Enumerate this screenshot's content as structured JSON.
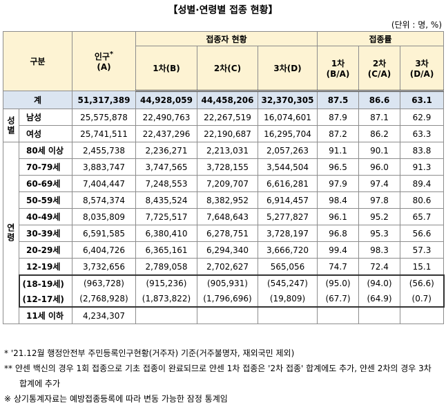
{
  "title": "【성별·연령별 접종 현황】",
  "unit": "(단위 : 명, %)",
  "table": {
    "header": {
      "group": "구분",
      "population": "인구",
      "population_mark": "*",
      "population_sub": "(A)",
      "vaccinated": "접종자 현황",
      "rate": "접종률",
      "vaccinated_columns": [
        "1차(B)",
        "2차(C)",
        "3차(D)"
      ],
      "rate_columns": [
        {
          "name": "1차",
          "sub": "(B/A)"
        },
        {
          "name": "2차",
          "sub": "(C/A)"
        },
        {
          "name": "3차",
          "sub": "(D/A)"
        }
      ]
    },
    "groups": {
      "sex": "성별",
      "age": "연령"
    },
    "rows": [
      [
        "계",
        "51,317,389",
        "44,928,059",
        "44,458,206",
        "32,370,305",
        "87.5",
        "86.6",
        "63.1"
      ],
      [
        "남성",
        "25,575,878",
        "22,490,763",
        "22,267,519",
        "16,074,601",
        "87.9",
        "87.1",
        "62.9"
      ],
      [
        "여성",
        "25,741,511",
        "22,437,296",
        "22,190,687",
        "16,295,704",
        "87.2",
        "86.2",
        "63.3"
      ],
      [
        "80세 이상",
        "2,455,738",
        "2,236,271",
        "2,213,031",
        "2,057,263",
        "91.1",
        "90.1",
        "83.8"
      ],
      [
        "70-79세",
        "3,883,747",
        "3,747,565",
        "3,728,155",
        "3,544,504",
        "96.5",
        "96.0",
        "91.3"
      ],
      [
        "60-69세",
        "7,404,447",
        "7,248,553",
        "7,209,707",
        "6,616,281",
        "97.9",
        "97.4",
        "89.4"
      ],
      [
        "50-59세",
        "8,574,374",
        "8,435,524",
        "8,382,952",
        "6,914,457",
        "98.4",
        "97.8",
        "80.6"
      ],
      [
        "40-49세",
        "8,035,809",
        "7,725,517",
        "7,648,643",
        "5,277,827",
        "96.1",
        "95.2",
        "65.7"
      ],
      [
        "30-39세",
        "6,591,585",
        "6,380,410",
        "6,278,751",
        "3,728,197",
        "96.8",
        "95.3",
        "56.6"
      ],
      [
        "20-29세",
        "6,404,726",
        "6,365,161",
        "6,294,340",
        "3,666,720",
        "99.4",
        "98.3",
        "57.3"
      ],
      [
        "12-19세",
        "3,732,656",
        "2,789,058",
        "2,702,627",
        "565,056",
        "74.7",
        "72.4",
        "15.1"
      ],
      [
        "(18-19세)",
        "(963,728)",
        "(915,236)",
        "(905,931)",
        "(545,247)",
        "(95.0)",
        "(94.0)",
        "(56.6)"
      ],
      [
        "(12-17세)",
        "(2,768,928)",
        "(1,873,822)",
        "(1,796,696)",
        "(19,809)",
        "(67.7)",
        "(64.9)",
        "(0.7)"
      ],
      [
        "11세 이하",
        "4,234,307"
      ]
    ]
  },
  "notes": [
    "* '21.12월 행정안전부 주민등록인구현황(거주자) 기준(거주불명자, 재외국민 제외)",
    "** 얀센 백신의 경우 1회 접종으로 기초 접종이 완료되므로 얀센 1차 접종은 '2차 접종' 합계에도 추가, 얀센 2차의 경우 3차 합계에 추가",
    "※ 상기통계자료는 예방접종등록에 따라 변동 가능한 잠정 통계임"
  ]
}
